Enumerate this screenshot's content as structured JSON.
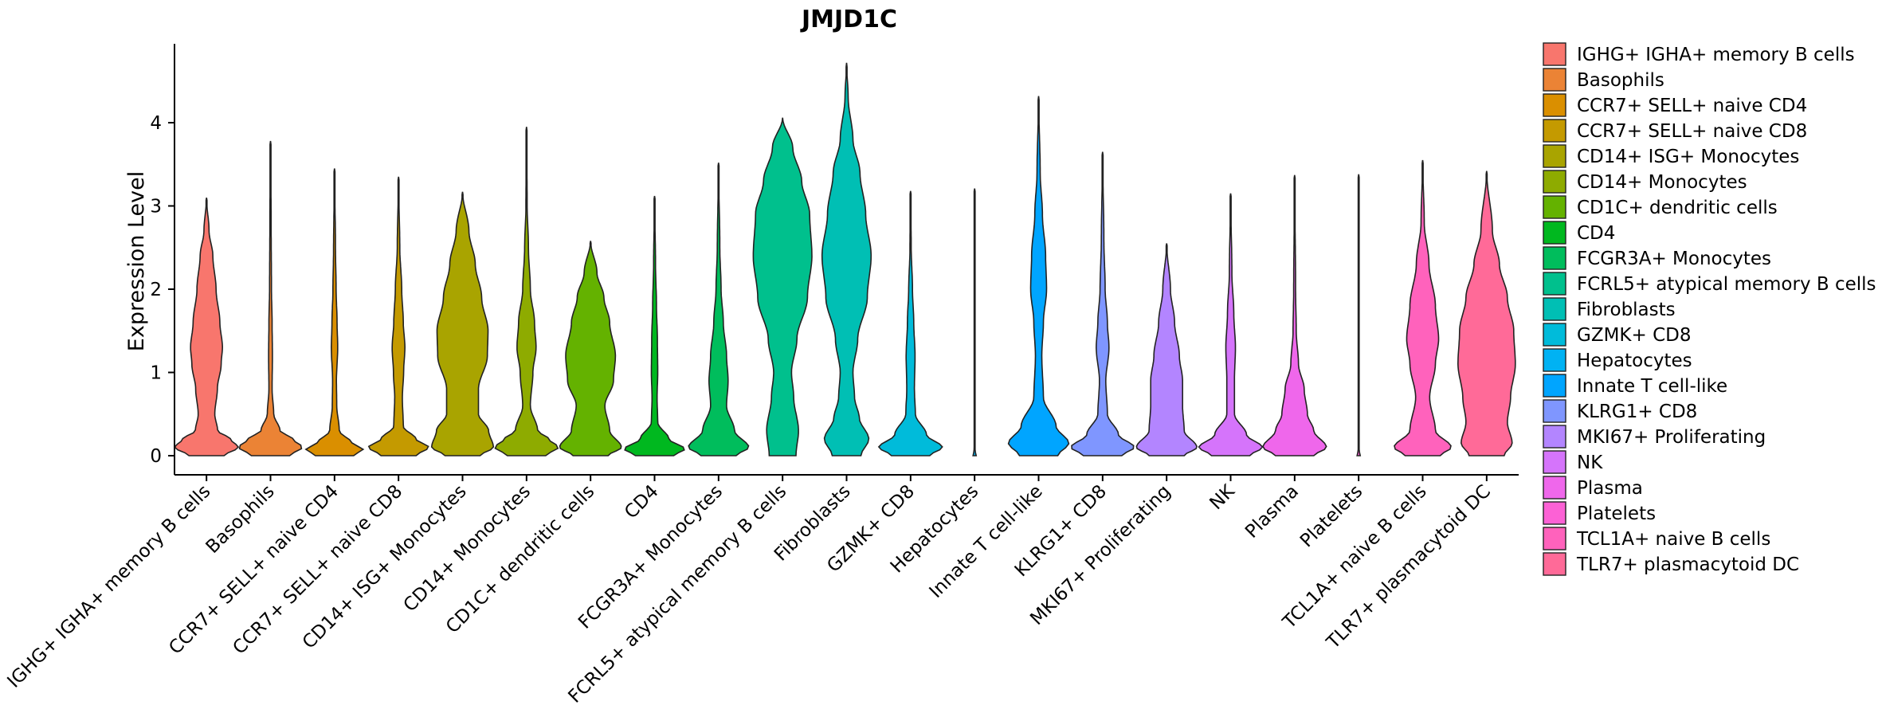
{
  "chart_data": {
    "type": "violin",
    "title": "JMJD1C",
    "xlabel": "",
    "ylabel": "Expression Level",
    "ylim": [
      -0.22,
      4.95
    ],
    "yticks": [
      0,
      1,
      2,
      3,
      4
    ],
    "legend_position": "right",
    "categories": [
      {
        "label": "IGHG+ IGHA+ memory B cells",
        "legend": " IGHG+ IGHA+ memory B cells",
        "color": "#F8766D",
        "max": 3.1,
        "profile": [
          [
            0,
            0.55
          ],
          [
            0.1,
            1.0
          ],
          [
            0.2,
            0.75
          ],
          [
            0.3,
            0.35
          ],
          [
            0.5,
            0.26
          ],
          [
            0.8,
            0.34
          ],
          [
            1.1,
            0.46
          ],
          [
            1.3,
            0.5
          ],
          [
            1.6,
            0.42
          ],
          [
            2.0,
            0.3
          ],
          [
            2.4,
            0.2
          ],
          [
            2.7,
            0.08
          ],
          [
            3.1,
            0.0
          ]
        ]
      },
      {
        "label": "Basophils",
        "legend": "Basophils",
        "color": "#EB8335",
        "max": 3.78,
        "profile": [
          [
            0,
            0.6
          ],
          [
            0.1,
            1.0
          ],
          [
            0.2,
            0.7
          ],
          [
            0.3,
            0.3
          ],
          [
            0.5,
            0.1
          ],
          [
            0.8,
            0.05
          ],
          [
            1.2,
            0.06
          ],
          [
            1.6,
            0.05
          ],
          [
            2.0,
            0.03
          ],
          [
            2.8,
            0.02
          ],
          [
            3.78,
            0.0
          ]
        ]
      },
      {
        "label": "CCR7+ SELL+ naive CD4",
        "legend": "CCR7+ SELL+ naive CD4",
        "color": "#DA8F00",
        "max": 3.45,
        "profile": [
          [
            0,
            0.6
          ],
          [
            0.08,
            0.9
          ],
          [
            0.15,
            0.55
          ],
          [
            0.3,
            0.15
          ],
          [
            0.6,
            0.07
          ],
          [
            0.9,
            0.06
          ],
          [
            1.3,
            0.1
          ],
          [
            1.6,
            0.08
          ],
          [
            2.0,
            0.05
          ],
          [
            2.5,
            0.03
          ],
          [
            3.45,
            0.0
          ]
        ]
      },
      {
        "label": "CCR7+ SELL+ naive CD8",
        "legend": "CCR7+ SELL+ naive CD8",
        "color": "#C49A00",
        "max": 3.35,
        "profile": [
          [
            0,
            0.55
          ],
          [
            0.1,
            0.95
          ],
          [
            0.2,
            0.55
          ],
          [
            0.35,
            0.15
          ],
          [
            0.7,
            0.12
          ],
          [
            1.0,
            0.16
          ],
          [
            1.3,
            0.2
          ],
          [
            1.6,
            0.15
          ],
          [
            2.0,
            0.1
          ],
          [
            2.5,
            0.04
          ],
          [
            3.35,
            0.0
          ]
        ]
      },
      {
        "label": "CD14+ ISG+ Monocytes",
        "legend": "CD14+ ISG+ Monocytes",
        "color": "#A9A400",
        "max": 3.17,
        "profile": [
          [
            0,
            0.55
          ],
          [
            0.1,
            0.97
          ],
          [
            0.3,
            0.82
          ],
          [
            0.5,
            0.5
          ],
          [
            0.8,
            0.5
          ],
          [
            1.2,
            0.78
          ],
          [
            1.5,
            0.8
          ],
          [
            1.9,
            0.6
          ],
          [
            2.3,
            0.4
          ],
          [
            2.7,
            0.2
          ],
          [
            3.17,
            0.0
          ]
        ]
      },
      {
        "label": "CD14+ Monocytes",
        "legend": "CD14+ Monocytes",
        "color": "#8EAB00",
        "max": 3.95,
        "profile": [
          [
            0,
            0.6
          ],
          [
            0.1,
            1.0
          ],
          [
            0.2,
            0.7
          ],
          [
            0.3,
            0.35
          ],
          [
            0.6,
            0.12
          ],
          [
            1.0,
            0.2
          ],
          [
            1.3,
            0.3
          ],
          [
            1.6,
            0.25
          ],
          [
            2.0,
            0.12
          ],
          [
            2.5,
            0.06
          ],
          [
            3.0,
            0.02
          ],
          [
            3.95,
            0.0
          ]
        ]
      },
      {
        "label": "CD1C+ dendritic cells",
        "legend": "CD1C+ dendritic cells",
        "color": "#64B200",
        "max": 2.58,
        "profile": [
          [
            0,
            0.55
          ],
          [
            0.1,
            0.97
          ],
          [
            0.3,
            0.6
          ],
          [
            0.6,
            0.45
          ],
          [
            0.9,
            0.72
          ],
          [
            1.2,
            0.78
          ],
          [
            1.6,
            0.6
          ],
          [
            1.9,
            0.42
          ],
          [
            2.2,
            0.2
          ],
          [
            2.58,
            0.0
          ]
        ]
      },
      {
        "label": "CD4",
        "legend": "CD4",
        "color": "#00B81F",
        "max": 3.12,
        "profile": [
          [
            0,
            0.6
          ],
          [
            0.08,
            0.95
          ],
          [
            0.2,
            0.45
          ],
          [
            0.4,
            0.1
          ],
          [
            0.7,
            0.08
          ],
          [
            1.0,
            0.1
          ],
          [
            1.4,
            0.09
          ],
          [
            1.8,
            0.06
          ],
          [
            2.3,
            0.03
          ],
          [
            3.12,
            0.0
          ]
        ]
      },
      {
        "label": "FCGR3A+ Monocytes",
        "legend": "FCGR3A+ Monocytes",
        "color": "#00BD5C",
        "max": 3.52,
        "profile": [
          [
            0,
            0.55
          ],
          [
            0.1,
            0.95
          ],
          [
            0.3,
            0.5
          ],
          [
            0.6,
            0.25
          ],
          [
            0.9,
            0.3
          ],
          [
            1.2,
            0.25
          ],
          [
            1.6,
            0.15
          ],
          [
            2.0,
            0.08
          ],
          [
            2.5,
            0.04
          ],
          [
            3.52,
            0.0
          ]
        ]
      },
      {
        "label": "FCRL5+ atypical memory B cells",
        "legend": "FCRL5+ atypical memory B cells",
        "color": "#00C08D",
        "max": 4.06,
        "profile": [
          [
            0,
            0.42
          ],
          [
            0.3,
            0.5
          ],
          [
            0.7,
            0.35
          ],
          [
            1.0,
            0.28
          ],
          [
            1.4,
            0.45
          ],
          [
            1.9,
            0.78
          ],
          [
            2.4,
            0.92
          ],
          [
            2.9,
            0.85
          ],
          [
            3.3,
            0.6
          ],
          [
            3.7,
            0.32
          ],
          [
            4.06,
            0.0
          ]
        ]
      },
      {
        "label": "Fibroblasts",
        "legend": "Fibroblasts",
        "color": "#00BFB4",
        "max": 4.72,
        "profile": [
          [
            0,
            0.45
          ],
          [
            0.2,
            0.7
          ],
          [
            0.45,
            0.4
          ],
          [
            0.7,
            0.25
          ],
          [
            1.0,
            0.2
          ],
          [
            1.4,
            0.35
          ],
          [
            1.9,
            0.65
          ],
          [
            2.4,
            0.77
          ],
          [
            2.9,
            0.6
          ],
          [
            3.4,
            0.42
          ],
          [
            3.8,
            0.2
          ],
          [
            4.3,
            0.05
          ],
          [
            4.72,
            0.0
          ]
        ]
      },
      {
        "label": "GZMK+ CD8",
        "legend": "GZMK+ CD8",
        "color": "#00BBDA",
        "max": 3.18,
        "profile": [
          [
            0,
            0.6
          ],
          [
            0.1,
            1.0
          ],
          [
            0.25,
            0.5
          ],
          [
            0.5,
            0.15
          ],
          [
            0.8,
            0.12
          ],
          [
            1.2,
            0.14
          ],
          [
            1.6,
            0.1
          ],
          [
            2.0,
            0.06
          ],
          [
            2.5,
            0.02
          ],
          [
            3.18,
            0.0
          ]
        ]
      },
      {
        "label": "Hepatocytes",
        "legend": "Hepatocytes",
        "color": "#00B2F3",
        "max": 3.21,
        "profile": [
          [
            0,
            0.05
          ],
          [
            0.02,
            0.03
          ],
          [
            0.1,
            0.01
          ],
          [
            3.21,
            0.0
          ]
        ]
      },
      {
        "label": "Innate T cell-like",
        "legend": "Innate T cell-like",
        "color": "#00A5FF",
        "max": 4.32,
        "profile": [
          [
            0,
            0.6
          ],
          [
            0.15,
            0.95
          ],
          [
            0.35,
            0.55
          ],
          [
            0.7,
            0.15
          ],
          [
            1.2,
            0.1
          ],
          [
            1.6,
            0.15
          ],
          [
            2.0,
            0.25
          ],
          [
            2.4,
            0.22
          ],
          [
            2.9,
            0.12
          ],
          [
            3.4,
            0.05
          ],
          [
            4.32,
            0.0
          ]
        ]
      },
      {
        "label": "KLRG1+ CD8",
        "legend": "KLRG1+ CD8",
        "color": "#7F96FF",
        "max": 3.65,
        "profile": [
          [
            0,
            0.6
          ],
          [
            0.1,
            1.0
          ],
          [
            0.25,
            0.5
          ],
          [
            0.5,
            0.15
          ],
          [
            0.9,
            0.1
          ],
          [
            1.3,
            0.2
          ],
          [
            1.6,
            0.15
          ],
          [
            2.0,
            0.08
          ],
          [
            2.6,
            0.04
          ],
          [
            3.65,
            0.0
          ]
        ]
      },
      {
        "label": "MKI67+ Proliferating",
        "legend": "MKI67+ Proliferating",
        "color": "#B385FF",
        "max": 2.55,
        "profile": [
          [
            0,
            0.55
          ],
          [
            0.1,
            0.95
          ],
          [
            0.3,
            0.55
          ],
          [
            0.6,
            0.5
          ],
          [
            0.9,
            0.5
          ],
          [
            1.2,
            0.4
          ],
          [
            1.6,
            0.25
          ],
          [
            2.0,
            0.12
          ],
          [
            2.55,
            0.0
          ]
        ]
      },
      {
        "label": "NK",
        "legend": "NK",
        "color": "#D574FB",
        "max": 3.15,
        "profile": [
          [
            0,
            0.6
          ],
          [
            0.1,
            1.0
          ],
          [
            0.25,
            0.5
          ],
          [
            0.5,
            0.12
          ],
          [
            0.9,
            0.12
          ],
          [
            1.3,
            0.15
          ],
          [
            1.7,
            0.1
          ],
          [
            2.2,
            0.04
          ],
          [
            3.15,
            0.0
          ]
        ]
      },
      {
        "label": "Plasma",
        "legend": "Plasma",
        "color": "#EF67EB",
        "max": 3.37,
        "profile": [
          [
            0,
            0.6
          ],
          [
            0.1,
            1.0
          ],
          [
            0.3,
            0.6
          ],
          [
            0.5,
            0.4
          ],
          [
            0.8,
            0.3
          ],
          [
            1.1,
            0.12
          ],
          [
            1.5,
            0.05
          ],
          [
            2.0,
            0.03
          ],
          [
            3.37,
            0.0
          ]
        ]
      },
      {
        "label": "Platelets",
        "legend": "Platelets",
        "color": "#FC61D5",
        "max": 3.38,
        "profile": [
          [
            0,
            0.05
          ],
          [
            0.02,
            0.03
          ],
          [
            0.1,
            0.01
          ],
          [
            3.38,
            0.0
          ]
        ]
      },
      {
        "label": "TCL1A+ naive B cells",
        "legend": "TCL1A+ naive B cells",
        "color": "#FF62BC",
        "max": 3.55,
        "profile": [
          [
            0,
            0.55
          ],
          [
            0.1,
            0.9
          ],
          [
            0.3,
            0.4
          ],
          [
            0.7,
            0.22
          ],
          [
            1.1,
            0.4
          ],
          [
            1.4,
            0.5
          ],
          [
            1.8,
            0.4
          ],
          [
            2.3,
            0.2
          ],
          [
            2.8,
            0.05
          ],
          [
            3.55,
            0.0
          ]
        ]
      },
      {
        "label": "TLR7+ plasmacytoid DC",
        "legend": "TLR7+ plasmacytoid DC",
        "color": "#FF6A98",
        "max": 3.42,
        "profile": [
          [
            0,
            0.55
          ],
          [
            0.15,
            0.8
          ],
          [
            0.4,
            0.65
          ],
          [
            0.7,
            0.75
          ],
          [
            1.1,
            0.9
          ],
          [
            1.5,
            0.85
          ],
          [
            1.9,
            0.65
          ],
          [
            2.3,
            0.4
          ],
          [
            2.7,
            0.18
          ],
          [
            3.42,
            0.0
          ]
        ]
      }
    ]
  }
}
